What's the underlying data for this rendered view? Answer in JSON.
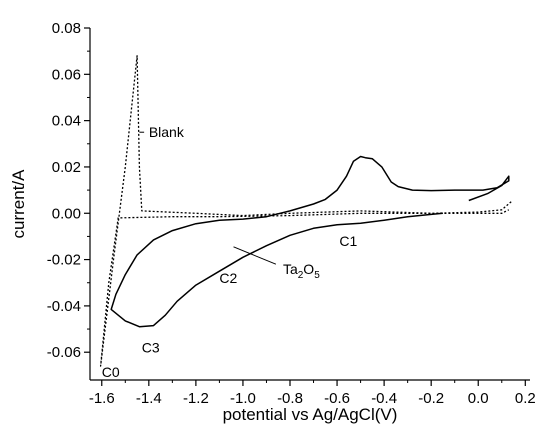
{
  "chart_data": {
    "type": "line",
    "xlabel": "potential vs Ag/AgCl(V)",
    "ylabel": "current/A",
    "xlim": [
      -1.65,
      0.22
    ],
    "ylim": [
      -0.072,
      0.08
    ],
    "x_ticks": [
      -1.6,
      -1.4,
      -1.2,
      -1.0,
      -0.8,
      -0.6,
      -0.4,
      -0.2,
      0.0,
      0.2
    ],
    "x_tick_labels": [
      "-1.6",
      "-1.4",
      "-1.2",
      "-1.0",
      "-0.8",
      "-0.6",
      "-0.4",
      "-0.2",
      "0.0",
      "0.2"
    ],
    "y_ticks": [
      -0.06,
      -0.04,
      -0.02,
      0.0,
      0.02,
      0.04,
      0.06,
      0.08
    ],
    "y_tick_labels": [
      "-0.06",
      "-0.04",
      "-0.02",
      "0.00",
      "0.02",
      "0.04",
      "0.06",
      "0.08"
    ],
    "grid": false,
    "series": [
      {
        "name": "Blank",
        "style": "dotted",
        "color": "#000000",
        "points": [
          [
            0.14,
            0.005
          ],
          [
            0.1,
            0.0015
          ],
          [
            0.0,
            0.0005
          ],
          [
            -0.2,
            0.0
          ],
          [
            -0.5,
            0.0
          ],
          [
            -0.8,
            -0.001
          ],
          [
            -1.1,
            -0.0015
          ],
          [
            -1.3,
            -0.0015
          ],
          [
            -1.53,
            -0.002
          ],
          [
            -1.57,
            -0.03
          ],
          [
            -1.605,
            -0.066
          ],
          [
            -1.55,
            -0.02
          ],
          [
            -1.5,
            0.02
          ],
          [
            -1.45,
            0.068
          ],
          [
            -1.44,
            0.02
          ],
          [
            -1.43,
            0.001
          ],
          [
            -1.2,
            0.0
          ],
          [
            -1.0,
            -0.001
          ],
          [
            -0.8,
            0.0
          ],
          [
            -0.5,
            0.001
          ],
          [
            -0.2,
            0.0
          ],
          [
            0.0,
            0.0
          ],
          [
            0.1,
            0.0
          ],
          [
            0.13,
            0.0015
          ]
        ]
      },
      {
        "name": "Ta2O5",
        "style": "solid",
        "color": "#000000",
        "points": [
          [
            -0.04,
            0.0055
          ],
          [
            0.04,
            0.0085
          ],
          [
            0.1,
            0.012
          ],
          [
            0.13,
            0.016
          ],
          [
            0.13,
            0.014
          ],
          [
            0.08,
            0.011
          ],
          [
            0.02,
            0.01
          ],
          [
            -0.1,
            0.01
          ],
          [
            -0.2,
            0.0098
          ],
          [
            -0.28,
            0.01
          ],
          [
            -0.34,
            0.0115
          ],
          [
            -0.37,
            0.0135
          ],
          [
            -0.41,
            0.02
          ],
          [
            -0.45,
            0.0235
          ],
          [
            -0.48,
            0.024
          ],
          [
            -0.5,
            0.0245
          ],
          [
            -0.53,
            0.0225
          ],
          [
            -0.56,
            0.016
          ],
          [
            -0.6,
            0.01
          ],
          [
            -0.65,
            0.006
          ],
          [
            -0.7,
            0.004
          ],
          [
            -0.8,
            0.001
          ],
          [
            -0.9,
            -0.0015
          ],
          [
            -1.0,
            -0.0025
          ],
          [
            -1.1,
            -0.003
          ],
          [
            -1.2,
            -0.0045
          ],
          [
            -1.3,
            -0.0075
          ],
          [
            -1.38,
            -0.0115
          ],
          [
            -1.45,
            -0.018
          ],
          [
            -1.5,
            -0.0265
          ],
          [
            -1.54,
            -0.035
          ],
          [
            -1.56,
            -0.0415
          ],
          [
            -1.5,
            -0.0465
          ],
          [
            -1.44,
            -0.049
          ],
          [
            -1.38,
            -0.0485
          ],
          [
            -1.33,
            -0.044
          ],
          [
            -1.28,
            -0.038
          ],
          [
            -1.2,
            -0.031
          ],
          [
            -1.1,
            -0.025
          ],
          [
            -1.0,
            -0.019
          ],
          [
            -0.9,
            -0.014
          ],
          [
            -0.8,
            -0.0095
          ],
          [
            -0.7,
            -0.0065
          ],
          [
            -0.6,
            -0.005
          ],
          [
            -0.5,
            -0.0043
          ],
          [
            -0.4,
            -0.003
          ],
          [
            -0.3,
            -0.0015
          ],
          [
            -0.2,
            -0.0005
          ],
          [
            -0.15,
            0.0
          ]
        ]
      }
    ],
    "annotations": [
      {
        "key": "blank",
        "text": "Blank",
        "x": -1.4,
        "y": 0.035,
        "leader": [
          [
            -1.42,
            0.035
          ],
          [
            -1.44,
            0.035
          ]
        ]
      },
      {
        "key": "c0",
        "text": "C0",
        "x": -1.6,
        "y": -0.0685
      },
      {
        "key": "c1",
        "text": "C1",
        "x": -0.59,
        "y": -0.012
      },
      {
        "key": "c2",
        "text": "C2",
        "x": -1.1,
        "y": -0.028
      },
      {
        "key": "c3",
        "text": "C3",
        "x": -1.43,
        "y": -0.058
      },
      {
        "key": "ta2o5",
        "text": "Ta2O5",
        "base": "Ta",
        "sub1": "2",
        "mid": "O",
        "sub2": "5",
        "x": -0.83,
        "y": -0.024,
        "leader": [
          [
            -0.86,
            -0.022
          ],
          [
            -1.04,
            -0.0145
          ]
        ]
      }
    ]
  }
}
